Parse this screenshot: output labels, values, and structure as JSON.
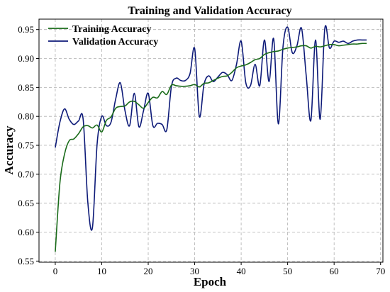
{
  "chart_data": {
    "type": "line",
    "title": "Training and Validation Accuracy",
    "xlabel": "Epoch",
    "ylabel": "Accuracy",
    "xlim": [
      -3.5,
      70.5
    ],
    "ylim": [
      0.548,
      0.968
    ],
    "xticks": [
      0,
      10,
      20,
      30,
      40,
      50,
      60,
      70
    ],
    "yticks": [
      0.55,
      0.6,
      0.65,
      0.7,
      0.75,
      0.8,
      0.85,
      0.9,
      0.95
    ],
    "ytick_labels": [
      "0.55",
      "0.60",
      "0.65",
      "0.70",
      "0.75",
      "0.80",
      "0.85",
      "0.90",
      "0.95"
    ],
    "grid": true,
    "legend_position": "top-left",
    "x": [
      0,
      1,
      2,
      3,
      4,
      5,
      6,
      7,
      8,
      9,
      10,
      11,
      12,
      13,
      14,
      15,
      16,
      17,
      18,
      19,
      20,
      21,
      22,
      23,
      24,
      25,
      26,
      27,
      28,
      29,
      30,
      31,
      32,
      33,
      34,
      35,
      36,
      37,
      38,
      39,
      40,
      41,
      42,
      43,
      44,
      45,
      46,
      47,
      48,
      49,
      50,
      51,
      52,
      53,
      54,
      55,
      56,
      57,
      58,
      59,
      60,
      61,
      62,
      63,
      64,
      65,
      66,
      67
    ],
    "series": [
      {
        "name": "Training Accuracy",
        "color": "#1a6b1a",
        "values": [
          0.566,
          0.685,
          0.735,
          0.758,
          0.761,
          0.77,
          0.782,
          0.784,
          0.78,
          0.785,
          0.773,
          0.793,
          0.799,
          0.814,
          0.817,
          0.818,
          0.825,
          0.826,
          0.82,
          0.814,
          0.824,
          0.833,
          0.832,
          0.843,
          0.838,
          0.854,
          0.853,
          0.852,
          0.852,
          0.853,
          0.855,
          0.851,
          0.857,
          0.858,
          0.862,
          0.866,
          0.869,
          0.87,
          0.876,
          0.884,
          0.887,
          0.889,
          0.893,
          0.898,
          0.9,
          0.907,
          0.91,
          0.912,
          0.913,
          0.916,
          0.918,
          0.919,
          0.92,
          0.922,
          0.922,
          0.918,
          0.921,
          0.92,
          0.922,
          0.924,
          0.924,
          0.922,
          0.923,
          0.924,
          0.925,
          0.925,
          0.926,
          0.926
        ]
      },
      {
        "name": "Validation Accuracy",
        "color": "#0d1a78",
        "values": [
          0.746,
          0.79,
          0.813,
          0.795,
          0.786,
          0.792,
          0.795,
          0.652,
          0.608,
          0.752,
          0.8,
          0.784,
          0.79,
          0.83,
          0.858,
          0.81,
          0.784,
          0.84,
          0.782,
          0.81,
          0.84,
          0.784,
          0.788,
          0.786,
          0.777,
          0.852,
          0.866,
          0.862,
          0.862,
          0.874,
          0.917,
          0.8,
          0.855,
          0.87,
          0.86,
          0.868,
          0.876,
          0.872,
          0.862,
          0.89,
          0.93,
          0.858,
          0.853,
          0.89,
          0.853,
          0.932,
          0.86,
          0.934,
          0.787,
          0.92,
          0.954,
          0.91,
          0.922,
          0.952,
          0.87,
          0.793,
          0.932,
          0.795,
          0.952,
          0.918,
          0.93,
          0.928,
          0.93,
          0.926,
          0.93,
          0.932,
          0.932,
          0.932
        ]
      }
    ]
  }
}
